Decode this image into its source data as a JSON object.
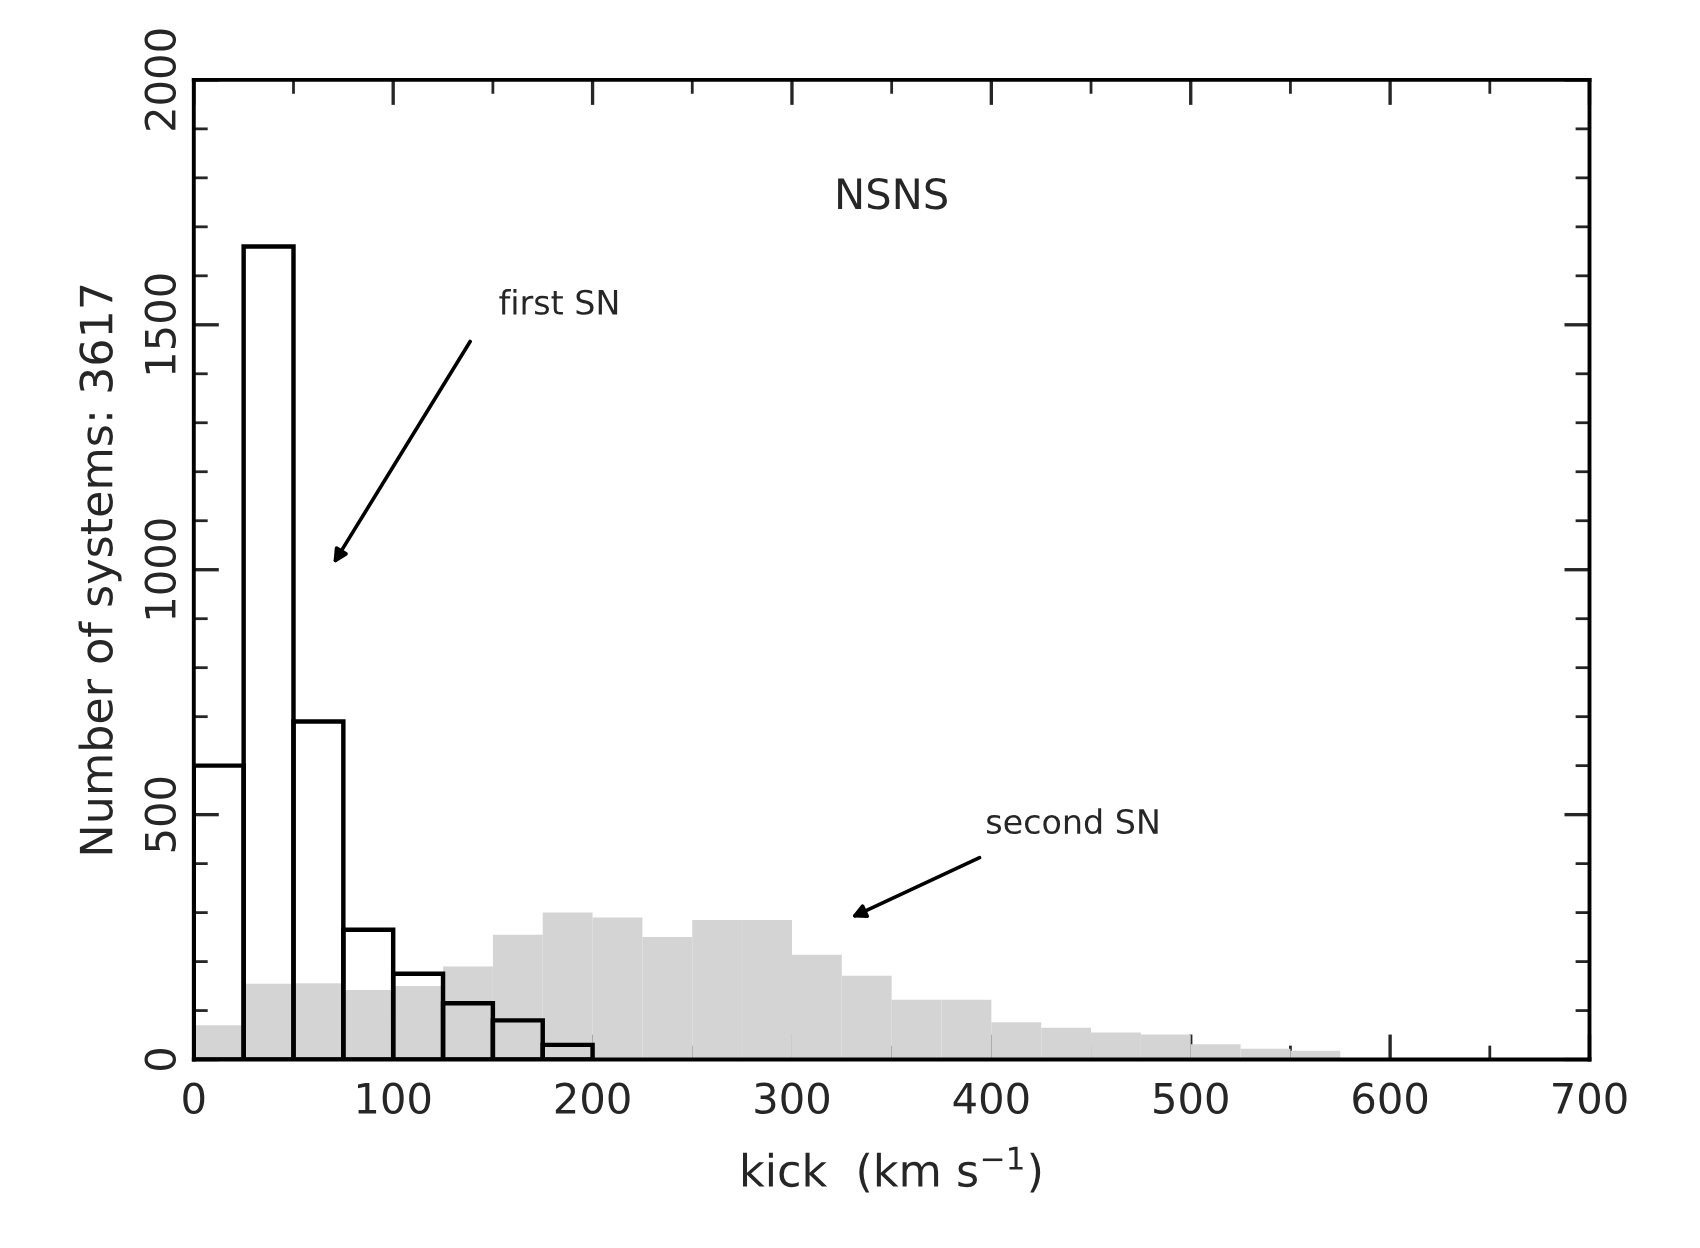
{
  "chart_data": {
    "type": "histogram",
    "xlabel": "kick  (km s$^{−1}$)",
    "ylabel": "Number of systems: 3617",
    "bins": [
      0,
      25,
      50,
      75,
      100,
      125,
      150,
      175,
      200,
      225,
      250,
      275,
      300,
      325,
      350,
      375,
      400,
      425,
      450,
      475,
      500,
      525,
      550,
      575,
      600,
      625,
      650,
      675,
      700
    ],
    "series": [
      {
        "color": "#d4d4d4",
        "values": [
          70,
          155,
          156,
          142,
          150,
          190,
          255,
          300,
          290,
          250,
          285,
          285,
          214,
          171,
          122,
          122,
          76,
          65,
          55,
          51,
          31,
          22,
          18,
          0,
          0,
          0,
          0,
          0
        ]
      },
      {
        "color": "#000000",
        "values": [
          600,
          1660,
          690,
          265,
          175,
          115,
          80,
          30,
          null,
          null,
          null,
          null,
          null,
          null,
          null,
          null,
          null,
          null,
          null,
          null,
          null,
          null,
          null,
          null,
          null,
          null,
          null,
          null
        ]
      }
    ],
    "annotations": [
      "NSNS",
      "first SN",
      "second SN"
    ],
    "xlim": [
      0,
      700
    ],
    "xticks": [
      0,
      100,
      200,
      300,
      400,
      500,
      600,
      700
    ],
    "ylim": [
      0,
      2000
    ],
    "yticks": [
      0,
      500,
      1000,
      1500,
      2000
    ],
    "grid": false,
    "legend": false
  }
}
